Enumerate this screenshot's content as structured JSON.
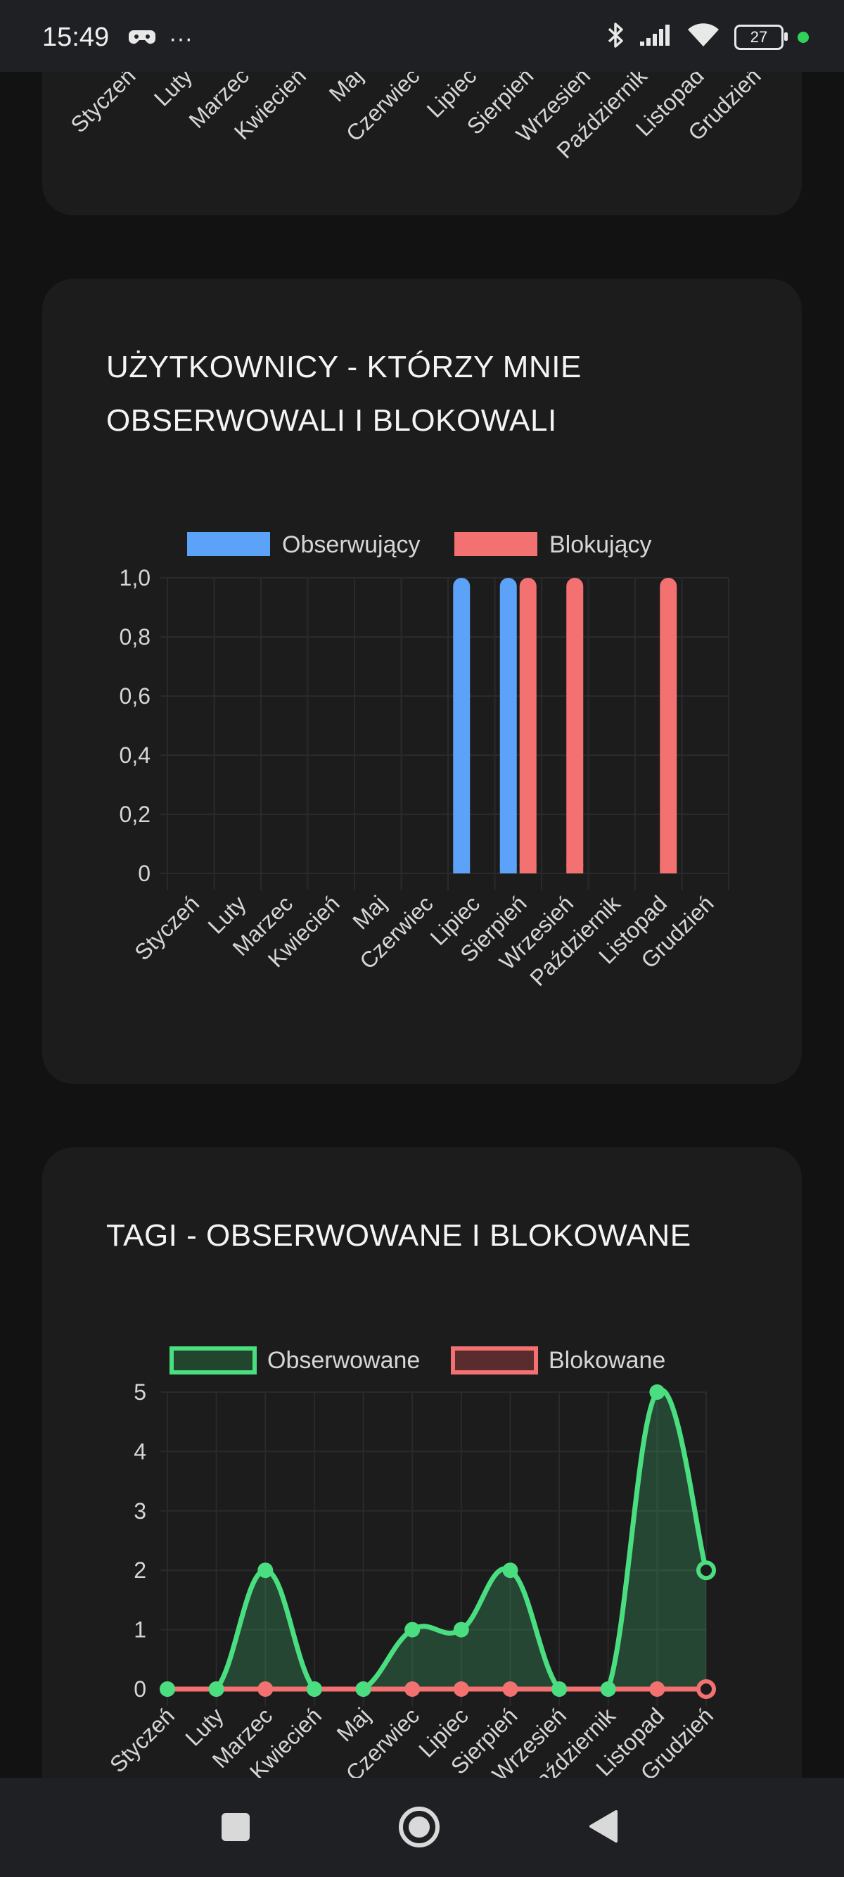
{
  "status_bar": {
    "time": "15:49",
    "more": "···",
    "battery": "27"
  },
  "months": [
    "Styczeń",
    "Luty",
    "Marzec",
    "Kwiecień",
    "Maj",
    "Czerwiec",
    "Lipiec",
    "Sierpień",
    "Wrzesień",
    "Październik",
    "Listopad",
    "Grudzień"
  ],
  "chart_users": {
    "title_line1": "UŻYTKOWNICY - KTÓRZY MNIE",
    "title_line2": "OBSERWOWALI I BLOKOWALI"
  },
  "chart_tags": {
    "title": "TAGI - OBSERWOWANE I BLOKOWANE"
  },
  "chart_data": [
    {
      "type": "bar",
      "title": "UŻYTKOWNICY - KTÓRZY MNIE OBSERWOWALI I BLOKOWALI",
      "categories": [
        "Styczeń",
        "Luty",
        "Marzec",
        "Kwiecień",
        "Maj",
        "Czerwiec",
        "Lipiec",
        "Sierpień",
        "Wrzesień",
        "Październik",
        "Listopad",
        "Grudzień"
      ],
      "series": [
        {
          "name": "Obserwujący",
          "color": "#5ca2f8",
          "values": [
            0,
            0,
            0,
            0,
            0,
            0,
            1,
            1,
            0,
            0,
            0,
            0
          ]
        },
        {
          "name": "Blokujący",
          "color": "#f47171",
          "values": [
            0,
            0,
            0,
            0,
            0,
            0,
            0,
            1,
            1,
            0,
            1,
            0
          ]
        }
      ],
      "yticks": [
        "0",
        "0,2",
        "0,4",
        "0,6",
        "0,8",
        "1,0"
      ],
      "ylim": [
        0,
        1
      ],
      "legend": "top"
    },
    {
      "type": "area",
      "title": "TAGI - OBSERWOWANE I BLOKOWANE",
      "categories": [
        "Styczeń",
        "Luty",
        "Marzec",
        "Kwiecień",
        "Maj",
        "Czerwiec",
        "Lipiec",
        "Sierpień",
        "Wrzesień",
        "Październik",
        "Listopad",
        "Grudzień"
      ],
      "series": [
        {
          "name": "Obserwowane",
          "color": "#4ade80",
          "values": [
            0,
            0,
            2,
            0,
            0,
            1,
            1,
            2,
            0,
            0,
            5,
            2
          ]
        },
        {
          "name": "Blokowane",
          "color": "#f47171",
          "values": [
            0,
            0,
            0,
            0,
            0,
            0,
            0,
            0,
            0,
            0,
            0,
            0
          ]
        }
      ],
      "yticks": [
        "0",
        "1",
        "2",
        "3",
        "4",
        "5"
      ],
      "ylim": [
        0,
        5
      ],
      "legend": "top"
    }
  ]
}
